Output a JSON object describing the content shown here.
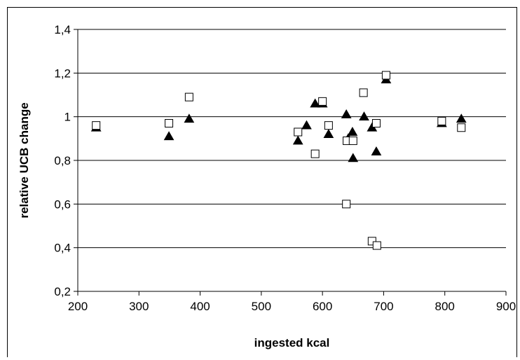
{
  "chart_data": {
    "type": "scatter",
    "title": "",
    "xlabel": "ingested kcal",
    "ylabel": "relative UCB change",
    "xlim": [
      200,
      900
    ],
    "ylim": [
      0.2,
      1.4
    ],
    "x_ticks": [
      "200",
      "300",
      "400",
      "500",
      "600",
      "700",
      "800",
      "900"
    ],
    "y_ticks": [
      "0,2",
      "0,4",
      "0,6",
      "0,8",
      "1",
      "1,2",
      "1,4"
    ],
    "grid": "horizontal",
    "legend": "none",
    "series": [
      {
        "marker": "filled-triangle",
        "color": "#000000",
        "points": [
          [
            230,
            0.95
          ],
          [
            349,
            0.91
          ],
          [
            382,
            0.99
          ],
          [
            560,
            0.89
          ],
          [
            574,
            0.96
          ],
          [
            588,
            1.06
          ],
          [
            600,
            1.06
          ],
          [
            610,
            0.92
          ],
          [
            639,
            1.01
          ],
          [
            642,
            0.9
          ],
          [
            649,
            0.93
          ],
          [
            650,
            0.81
          ],
          [
            668,
            1.0
          ],
          [
            681,
            0.95
          ],
          [
            688,
            0.84
          ],
          [
            704,
            1.17
          ],
          [
            795,
            0.97
          ],
          [
            827,
            0.99
          ]
        ]
      },
      {
        "marker": "open-square",
        "color": "#000000",
        "points": [
          [
            230,
            0.96
          ],
          [
            349,
            0.97
          ],
          [
            382,
            1.09
          ],
          [
            560,
            0.93
          ],
          [
            588,
            0.83
          ],
          [
            600,
            1.07
          ],
          [
            610,
            0.96
          ],
          [
            639,
            0.6
          ],
          [
            640,
            0.89
          ],
          [
            650,
            0.89
          ],
          [
            667,
            1.11
          ],
          [
            681,
            0.43
          ],
          [
            688,
            0.97
          ],
          [
            689,
            0.41
          ],
          [
            704,
            1.19
          ],
          [
            795,
            0.98
          ],
          [
            827,
            0.95
          ]
        ]
      }
    ]
  }
}
